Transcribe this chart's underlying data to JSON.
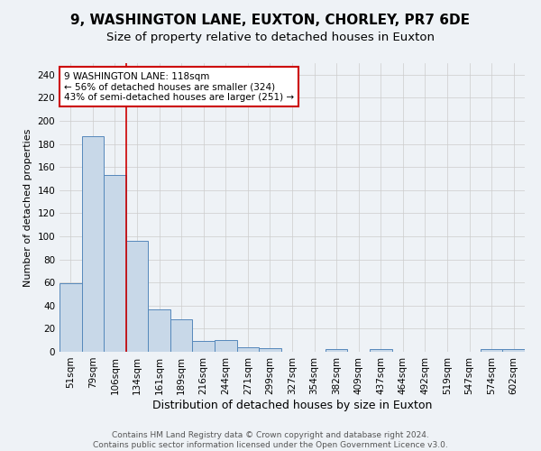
{
  "title1": "9, WASHINGTON LANE, EUXTON, CHORLEY, PR7 6DE",
  "title2": "Size of property relative to detached houses in Euxton",
  "xlabel": "Distribution of detached houses by size in Euxton",
  "ylabel": "Number of detached properties",
  "categories": [
    "51sqm",
    "79sqm",
    "106sqm",
    "134sqm",
    "161sqm",
    "189sqm",
    "216sqm",
    "244sqm",
    "271sqm",
    "299sqm",
    "327sqm",
    "354sqm",
    "382sqm",
    "409sqm",
    "437sqm",
    "464sqm",
    "492sqm",
    "519sqm",
    "547sqm",
    "574sqm",
    "602sqm"
  ],
  "values": [
    59,
    187,
    153,
    96,
    37,
    28,
    9,
    10,
    4,
    3,
    0,
    0,
    2,
    0,
    2,
    0,
    0,
    0,
    0,
    2,
    2
  ],
  "bar_color": "#c8d8e8",
  "bar_edge_color": "#5588bb",
  "annotation_line1": "9 WASHINGTON LANE: 118sqm",
  "annotation_line2": "← 56% of detached houses are smaller (324)",
  "annotation_line3": "43% of semi-detached houses are larger (251) →",
  "annotation_box_color": "#ffffff",
  "annotation_box_edge_color": "#cc0000",
  "red_line_x": 2.5,
  "ylim": [
    0,
    250
  ],
  "yticks": [
    0,
    20,
    40,
    60,
    80,
    100,
    120,
    140,
    160,
    180,
    200,
    220,
    240
  ],
  "footer1": "Contains HM Land Registry data © Crown copyright and database right 2024.",
  "footer2": "Contains public sector information licensed under the Open Government Licence v3.0.",
  "background_color": "#eef2f6",
  "plot_background_color": "#eef2f6",
  "grid_color": "#cccccc",
  "title1_fontsize": 11,
  "title2_fontsize": 9.5,
  "xlabel_fontsize": 9,
  "ylabel_fontsize": 8,
  "tick_fontsize": 7.5,
  "footer_fontsize": 6.5
}
